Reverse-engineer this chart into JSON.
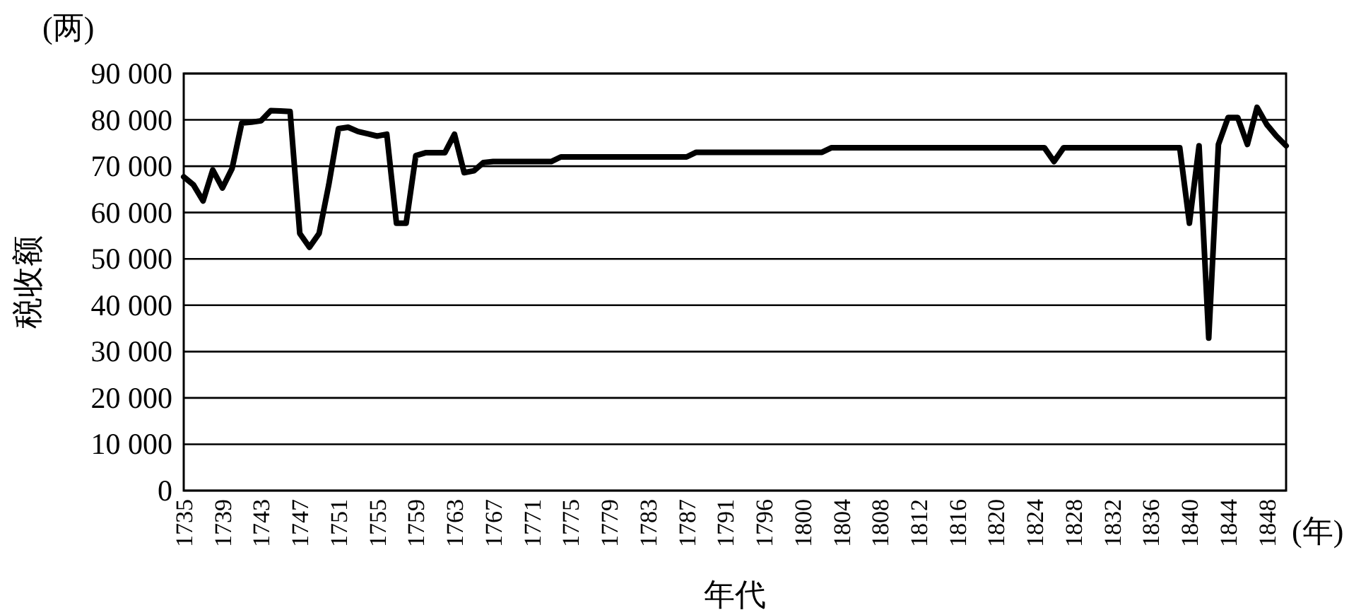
{
  "chart_data": {
    "type": "line",
    "xlabel": "年代",
    "ylabel": "税收额",
    "annotations": [
      "(两)",
      "(年)"
    ],
    "categories": [
      "1735",
      null,
      null,
      null,
      "1739",
      null,
      null,
      null,
      "1743",
      null,
      null,
      null,
      "1747",
      null,
      null,
      null,
      "1751",
      null,
      null,
      null,
      "1755",
      null,
      null,
      null,
      "1759",
      null,
      null,
      null,
      "1763",
      null,
      null,
      null,
      "1767",
      null,
      null,
      null,
      "1771",
      null,
      null,
      null,
      "1775",
      null,
      null,
      null,
      "1779",
      null,
      null,
      null,
      "1783",
      null,
      null,
      null,
      "1787",
      null,
      null,
      null,
      "1791",
      null,
      null,
      null,
      "1796",
      null,
      null,
      null,
      "1800",
      null,
      null,
      null,
      "1804",
      null,
      null,
      null,
      "1808",
      null,
      null,
      null,
      "1812",
      null,
      null,
      null,
      "1816",
      null,
      null,
      null,
      "1820",
      null,
      null,
      null,
      "1824",
      null,
      null,
      null,
      "1828",
      null,
      null,
      null,
      "1832",
      null,
      null,
      null,
      "1836",
      null,
      null,
      null,
      "1840",
      null,
      null,
      null,
      "1844",
      null,
      null,
      null,
      "1848",
      null,
      null
    ],
    "series": [
      {
        "color": "#000000",
        "values": [
          67700,
          66000,
          62500,
          69200,
          65300,
          69500,
          79300,
          79500,
          79800,
          82000,
          81900,
          81800,
          55500,
          52500,
          55500,
          66000,
          78100,
          78400,
          77500,
          77000,
          76500,
          76900,
          57700,
          57700,
          72300,
          72900,
          72900,
          72900,
          76900,
          68600,
          69000,
          70800,
          71000,
          71000,
          71000,
          71000,
          71000,
          71000,
          71000,
          72000,
          72000,
          72000,
          72000,
          72000,
          72000,
          72000,
          72000,
          72000,
          72000,
          72000,
          72000,
          72000,
          72000,
          73000,
          73000,
          73000,
          73000,
          73000,
          73000,
          73000,
          73000,
          73000,
          73000,
          73000,
          73000,
          73000,
          73000,
          74000,
          74000,
          74000,
          74000,
          74000,
          74000,
          74000,
          74000,
          74000,
          74000,
          74000,
          74000,
          74000,
          74000,
          74000,
          74000,
          74000,
          74000,
          74000,
          74000,
          74000,
          74000,
          74000,
          71000,
          74000,
          74000,
          74000,
          74000,
          74000,
          74000,
          74000,
          74000,
          74000,
          74000,
          74000,
          74000,
          74000,
          57700,
          74400,
          32900,
          74700,
          80500,
          80500,
          74700,
          82700,
          79000,
          76500,
          74400
        ]
      }
    ],
    "ylim": [
      0,
      90000
    ],
    "yticks": [
      0,
      {
        "value": 10000,
        "label": "10 000"
      },
      {
        "value": 20000,
        "label": "20 000"
      },
      {
        "value": 30000,
        "label": "30 000"
      },
      {
        "value": 40000,
        "label": "40 000"
      },
      {
        "value": 50000,
        "label": "50 000"
      },
      {
        "value": 60000,
        "label": "60 000"
      },
      {
        "value": 70000,
        "label": "70 000"
      },
      {
        "value": 80000,
        "label": "80 000"
      },
      {
        "value": 90000,
        "label": "90 000"
      }
    ],
    "grid": "y",
    "line_style": "solid",
    "marker": "none"
  }
}
